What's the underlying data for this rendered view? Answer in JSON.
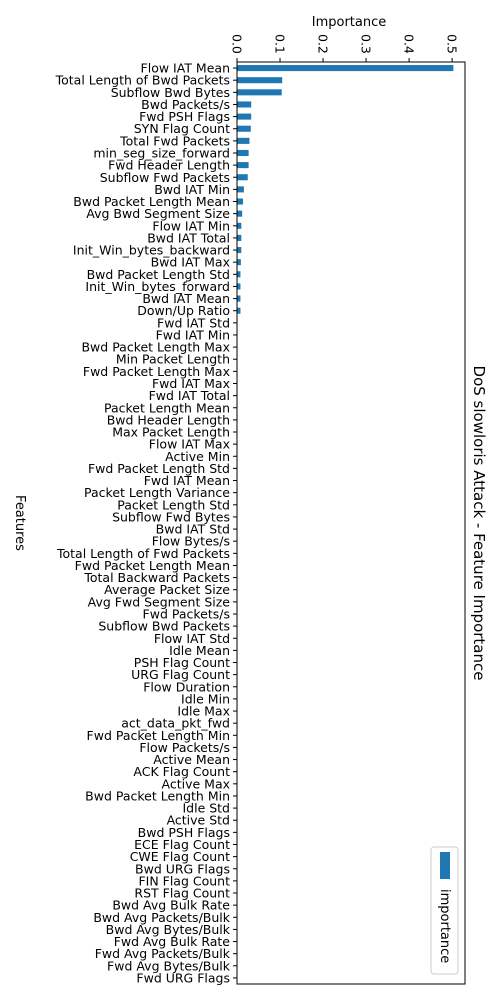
{
  "chart_data": {
    "type": "bar",
    "orientation": "horizontal",
    "title": "DoS slowloris Attack - Feature Importance",
    "xlabel": "Importance",
    "ylabel": "Features",
    "xlim": [
      0,
      0.53
    ],
    "xticks": [
      "0.0",
      "0.1",
      "0.2",
      "0.3",
      "0.4",
      "0.5"
    ],
    "xtick_values": [
      0,
      0.1,
      0.2,
      0.3,
      0.4,
      0.5
    ],
    "legend": {
      "label": "importance",
      "position": "bottom-right"
    },
    "bar_color": "#1f77b4",
    "grid": false,
    "categories": [
      "Flow IAT Mean",
      "Total Length of Bwd Packets",
      "Subflow Bwd Bytes",
      "Bwd Packets/s",
      "Fwd PSH Flags",
      "SYN Flag Count",
      "Total Fwd Packets",
      "min_seg_size_forward",
      "Fwd Header Length",
      "Subflow Fwd Packets",
      "Bwd IAT Min",
      "Bwd Packet Length Mean",
      "Avg Bwd Segment Size",
      "Flow IAT Min",
      "Bwd IAT Total",
      "Init_Win_bytes_backward",
      "Bwd IAT Max",
      "Bwd Packet Length Std",
      "Init_Win_bytes_forward",
      "Bwd IAT Mean",
      "Down/Up Ratio",
      "Fwd IAT Std",
      "Fwd IAT Min",
      "Bwd Packet Length Max",
      "Min Packet Length",
      "Fwd Packet Length Max",
      "Fwd IAT Max",
      "Fwd IAT Total",
      "Packet Length Mean",
      "Bwd Header Length",
      "Max Packet Length",
      "Flow IAT Max",
      "Active Min",
      "Fwd Packet Length Std",
      "Fwd IAT Mean",
      "Packet Length Variance",
      "Packet Length Std",
      "Subflow Fwd Bytes",
      "Bwd IAT Std",
      "Flow Bytes/s",
      "Total Length of Fwd Packets",
      "Fwd Packet Length Mean",
      "Total Backward Packets",
      "Average Packet Size",
      "Avg Fwd Segment Size",
      "Fwd Packets/s",
      "Subflow Bwd Packets",
      "Flow IAT Std",
      "Idle Mean",
      "PSH Flag Count",
      "URG Flag Count",
      "Flow Duration",
      "Idle Min",
      "Idle Max",
      "act_data_pkt_fwd",
      "Fwd Packet Length Min",
      "Flow Packets/s",
      "Active Mean",
      "ACK Flag Count",
      "Active Max",
      "Bwd Packet Length Min",
      "Idle Std",
      "Active Std",
      "Bwd PSH Flags",
      "ECE Flag Count",
      "CWE Flag Count",
      "Bwd URG Flags",
      "FIN Flag Count",
      "RST Flag Count",
      "Bwd Avg Bulk Rate",
      "Bwd Avg Packets/Bulk",
      "Bwd Avg Bytes/Bulk",
      "Fwd Avg Bulk Rate",
      "Fwd Avg Packets/Bulk",
      "Fwd Avg Bytes/Bulk",
      "Fwd URG Flags"
    ],
    "values": [
      0.503,
      0.105,
      0.104,
      0.033,
      0.033,
      0.032,
      0.029,
      0.027,
      0.027,
      0.025,
      0.016,
      0.014,
      0.012,
      0.01,
      0.01,
      0.01,
      0.009,
      0.008,
      0.008,
      0.008,
      0.008,
      0.001,
      0.001,
      0.001,
      0.001,
      0.001,
      0.001,
      0.001,
      0.001,
      0.001,
      0.001,
      0.001,
      0.001,
      0.001,
      0.001,
      0.001,
      0.001,
      0.001,
      0.001,
      0.001,
      0.001,
      0.001,
      0.001,
      0.001,
      0.001,
      0.001,
      0.001,
      0.001,
      0.0,
      0.0,
      0.0,
      0.0,
      0.0,
      0.0,
      0.0,
      0.0,
      0.0,
      0.0,
      0.0,
      0.0,
      0.0,
      0.0,
      0.0,
      0.0,
      0.0,
      0.0,
      0.0,
      0.0,
      0.0,
      0.0,
      0.0,
      0.0,
      0.0,
      0.0,
      0.0,
      0.0
    ]
  }
}
